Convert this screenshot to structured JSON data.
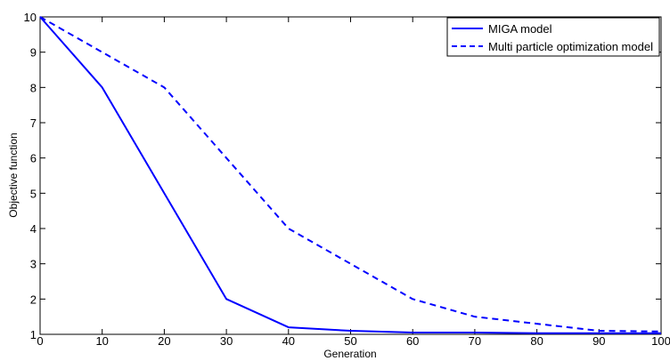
{
  "chart_data": {
    "type": "line",
    "title": "",
    "xlabel": "Generation",
    "ylabel": "Objective function",
    "xlim": [
      0,
      100
    ],
    "ylim": [
      1,
      10
    ],
    "xticks": [
      0,
      10,
      20,
      30,
      40,
      50,
      60,
      70,
      80,
      90,
      100
    ],
    "yticks": [
      1,
      2,
      3,
      4,
      5,
      6,
      7,
      8,
      9,
      10
    ],
    "grid": false,
    "legend_position": "top-right",
    "series": [
      {
        "name": "MIGA model",
        "style": "solid",
        "color": "#0000ff",
        "x": [
          0,
          10,
          20,
          30,
          40,
          50,
          60,
          70,
          80,
          90,
          100
        ],
        "y": [
          10,
          8,
          5,
          2,
          1.2,
          1.1,
          1.05,
          1.05,
          1.03,
          1.03,
          1.03
        ]
      },
      {
        "name": "Multi particle optimization model",
        "style": "dashed",
        "color": "#0000ff",
        "x": [
          0,
          10,
          20,
          30,
          40,
          50,
          60,
          70,
          80,
          90,
          100
        ],
        "y": [
          10,
          9,
          8,
          6,
          4,
          3,
          2,
          1.5,
          1.3,
          1.1,
          1.08
        ]
      }
    ]
  }
}
